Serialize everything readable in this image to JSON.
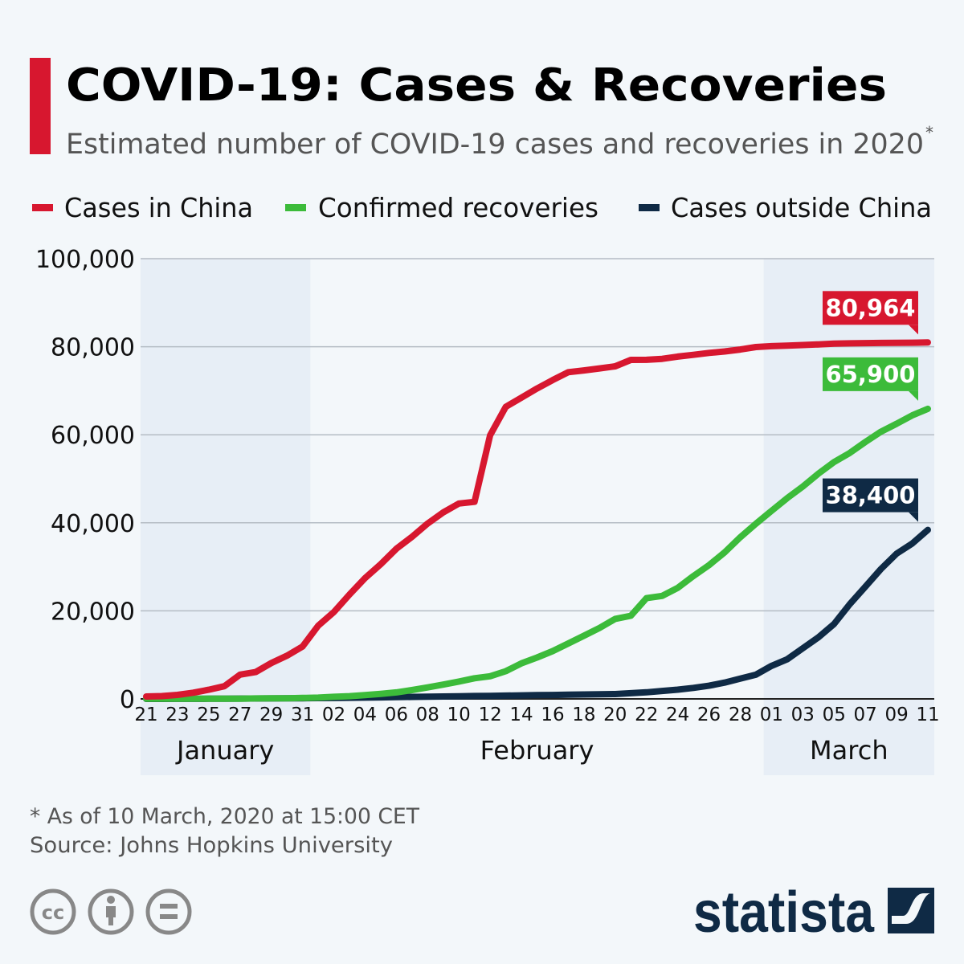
{
  "header": {
    "title": "COVID-19: Cases & Recoveries",
    "subtitle": "Estimated number of COVID-19 cases and recoveries in 2020",
    "subtitle_mark": "*"
  },
  "legend": [
    {
      "label": "Cases in China",
      "color": "#d7172f"
    },
    {
      "label": "Confirmed recoveries",
      "color": "#3cbb3a"
    },
    {
      "label": "Cases outside China",
      "color": "#0f2a45"
    }
  ],
  "footer": {
    "note": "* As of 10 March, 2020 at 15:00 CET",
    "source": "Source: Johns Hopkins University",
    "brand": "statista",
    "license_icons": [
      "cc-icon",
      "attribution-icon",
      "no-derivatives-icon"
    ]
  },
  "chart_data": {
    "type": "line",
    "title": "COVID-19: Cases & Recoveries",
    "xlabel": "",
    "ylabel": "",
    "ylim": [
      0,
      100000
    ],
    "yticks": [
      0,
      20000,
      40000,
      60000,
      80000,
      100000
    ],
    "ytick_labels": [
      "0",
      "20,000",
      "40,000",
      "60,000",
      "80,000",
      "100,000"
    ],
    "grid": true,
    "legend_position": "top",
    "x_start": "2020-01-21",
    "x_days": 51,
    "xtick_labels": [
      "21",
      "23",
      "25",
      "27",
      "29",
      "31",
      "02",
      "04",
      "06",
      "08",
      "10",
      "12",
      "14",
      "16",
      "18",
      "20",
      "22",
      "24",
      "26",
      "28",
      "01",
      "03",
      "05",
      "07",
      "09",
      "11"
    ],
    "months": [
      {
        "label": "January",
        "start_day": 0,
        "end_day": 10,
        "shaded": true
      },
      {
        "label": "February",
        "start_day": 11,
        "end_day": 39,
        "shaded": false
      },
      {
        "label": "March",
        "start_day": 40,
        "end_day": 50,
        "shaded": true
      }
    ],
    "series": [
      {
        "name": "Cases in China",
        "color": "#d7172f",
        "end_label": "80,964",
        "values": [
          548,
          643,
          920,
          1406,
          2075,
          2877,
          5509,
          6087,
          8141,
          9802,
          11891,
          16630,
          19716,
          23707,
          27440,
          30587,
          34110,
          36814,
          39829,
          42354,
          44386,
          44759,
          59895,
          66358,
          68413,
          70513,
          72434,
          74211,
          74619,
          75077,
          75550,
          77001,
          77022,
          77241,
          77754,
          78166,
          78600,
          78928,
          79356,
          79932,
          80136,
          80261,
          80386,
          80537,
          80690,
          80770,
          80823,
          80860,
          80887,
          80921,
          80964
        ]
      },
      {
        "name": "Confirmed recoveries",
        "color": "#3cbb3a",
        "end_label": "65,900",
        "values": [
          28,
          28,
          30,
          36,
          39,
          52,
          61,
          107,
          126,
          143,
          222,
          284,
          472,
          623,
          852,
          1124,
          1487,
          2011,
          2616,
          3244,
          3946,
          4683,
          5150,
          6295,
          8058,
          9395,
          10865,
          12583,
          14352,
          16121,
          18177,
          18890,
          22886,
          23394,
          25227,
          27905,
          30384,
          33277,
          36711,
          39782,
          42716,
          45602,
          48228,
          51170,
          53796,
          55865,
          58358,
          60694,
          62494,
          64404,
          65900
        ]
      },
      {
        "name": "Cases outside China",
        "color": "#0f2a45",
        "end_label": "38,400",
        "values": [
          7,
          9,
          14,
          20,
          30,
          50,
          70,
          90,
          110,
          130,
          150,
          180,
          200,
          250,
          300,
          350,
          400,
          450,
          500,
          550,
          600,
          650,
          700,
          750,
          800,
          850,
          900,
          950,
          1000,
          1050,
          1100,
          1300,
          1500,
          1800,
          2100,
          2500,
          3000,
          3700,
          4600,
          5500,
          7500,
          9000,
          11500,
          14000,
          17000,
          21500,
          25500,
          29500,
          33000,
          35300,
          38400
        ]
      }
    ]
  }
}
